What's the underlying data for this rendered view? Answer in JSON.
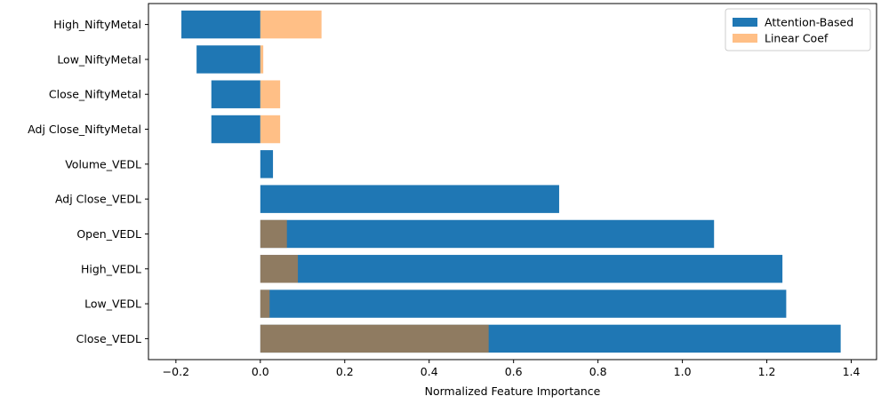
{
  "chart_data": {
    "type": "bar",
    "orientation": "horizontal",
    "categories": [
      "High_NiftyMetal",
      "Low_NiftyMetal",
      "Close_NiftyMetal",
      "Adj Close_NiftyMetal",
      "Volume_VEDL",
      "Adj Close_VEDL",
      "Open_VEDL",
      "High_VEDL",
      "Low_VEDL",
      "Close_VEDL"
    ],
    "series": [
      {
        "name": "Attention-Based",
        "color": "#1f77b4",
        "opacity": 1.0,
        "values": [
          -0.187,
          -0.151,
          -0.116,
          -0.116,
          0.03,
          0.708,
          1.075,
          1.237,
          1.246,
          1.375
        ]
      },
      {
        "name": "Linear Coef",
        "color": "#ff7f0e",
        "opacity": 0.5,
        "values": [
          0.145,
          0.007,
          0.047,
          0.047,
          0.0,
          0.0,
          0.063,
          0.089,
          0.022,
          0.541
        ]
      }
    ],
    "xlabel": "Normalized Feature Importance",
    "ylabel": "",
    "title": "",
    "xlim": [
      -0.265,
      1.46
    ],
    "xticks": [
      -0.2,
      0.0,
      0.2,
      0.4,
      0.6,
      0.8,
      1.0,
      1.2,
      1.4
    ],
    "xtick_labels": [
      "−0.2",
      "0.0",
      "0.2",
      "0.4",
      "0.6",
      "0.8",
      "1.0",
      "1.2",
      "1.4"
    ],
    "grid": false,
    "legend_position": "upper right"
  }
}
